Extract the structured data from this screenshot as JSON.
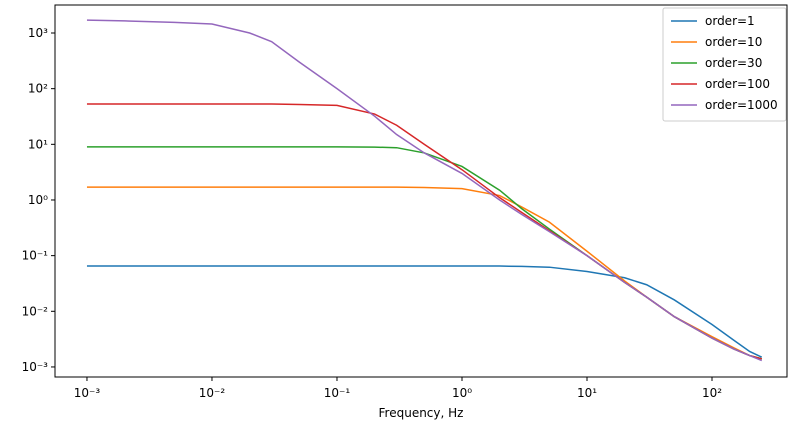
{
  "chart_data": {
    "type": "line",
    "xlabel": "Frequency, Hz",
    "xscale": "log",
    "yscale": "log",
    "grid": false,
    "legend": "upper right",
    "xlim": [
      0.000555,
      398
    ],
    "ylim": [
      0.00066,
      3185
    ],
    "xticks": [
      {
        "value": 0.001,
        "label": "10⁻³"
      },
      {
        "value": 0.01,
        "label": "10⁻²"
      },
      {
        "value": 0.1,
        "label": "10⁻¹"
      },
      {
        "value": 1,
        "label": "10⁰"
      },
      {
        "value": 10,
        "label": "10¹"
      },
      {
        "value": 100,
        "label": "10²"
      }
    ],
    "yticks": [
      {
        "value": 0.001,
        "label": "10⁻³"
      },
      {
        "value": 0.01,
        "label": "10⁻²"
      },
      {
        "value": 0.1,
        "label": "10⁻¹"
      },
      {
        "value": 1,
        "label": "10⁰"
      },
      {
        "value": 10,
        "label": "10¹"
      },
      {
        "value": 100,
        "label": "10²"
      },
      {
        "value": 1000,
        "label": "10³"
      }
    ],
    "x": [
      0.001,
      0.002,
      0.005,
      0.01,
      0.02,
      0.03,
      0.05,
      0.1,
      0.2,
      0.3,
      0.5,
      1,
      2,
      3,
      5,
      10,
      20,
      30,
      50,
      100,
      150,
      200,
      250
    ],
    "series": [
      {
        "name": "order=1",
        "color": "#1f77b4",
        "values": [
          0.065,
          0.065,
          0.065,
          0.065,
          0.065,
          0.065,
          0.065,
          0.065,
          0.065,
          0.065,
          0.065,
          0.065,
          0.065,
          0.064,
          0.062,
          0.052,
          0.04,
          0.03,
          0.016,
          0.0058,
          0.003,
          0.0019,
          0.0015
        ]
      },
      {
        "name": "order=10",
        "color": "#ff7f0e",
        "values": [
          1.7,
          1.7,
          1.7,
          1.7,
          1.7,
          1.7,
          1.7,
          1.7,
          1.7,
          1.7,
          1.68,
          1.6,
          1.2,
          0.75,
          0.4,
          0.12,
          0.035,
          0.018,
          0.008,
          0.0035,
          0.0022,
          0.0016,
          0.0014
        ]
      },
      {
        "name": "order=30",
        "color": "#2ca02c",
        "values": [
          9,
          9,
          9,
          9,
          9,
          9,
          9,
          9,
          8.9,
          8.7,
          7,
          4,
          1.5,
          0.7,
          0.3,
          0.1,
          0.033,
          0.018,
          0.008,
          0.0033,
          0.0021,
          0.0016,
          0.0014
        ]
      },
      {
        "name": "order=100",
        "color": "#d62728",
        "values": [
          53,
          53,
          53,
          53,
          53,
          53,
          52,
          50,
          35,
          22,
          10,
          3.5,
          1.1,
          0.6,
          0.28,
          0.1,
          0.033,
          0.018,
          0.008,
          0.0033,
          0.0021,
          0.0016,
          0.0014
        ]
      },
      {
        "name": "order=1000",
        "color": "#9467bd",
        "values": [
          1700,
          1650,
          1550,
          1450,
          1000,
          700,
          300,
          100,
          32,
          15,
          7,
          3,
          1.0,
          0.55,
          0.27,
          0.1,
          0.033,
          0.018,
          0.008,
          0.0033,
          0.0021,
          0.0016,
          0.0013
        ]
      }
    ]
  }
}
